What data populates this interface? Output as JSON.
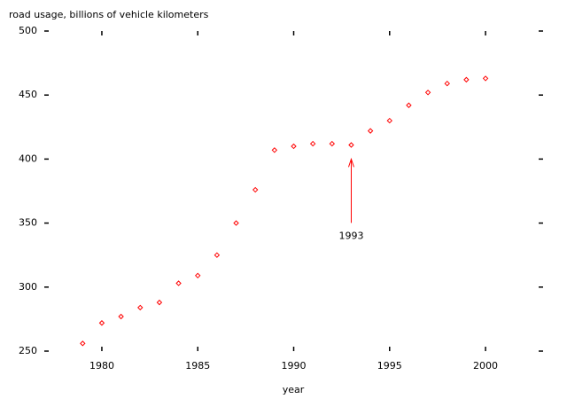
{
  "chart_data": {
    "type": "scatter",
    "title": "road usage, billions of vehicle kilometers",
    "x_label": "year",
    "x": [
      1979,
      1980,
      1981,
      1982,
      1983,
      1984,
      1985,
      1986,
      1987,
      1988,
      1989,
      1990,
      1991,
      1992,
      1993,
      1994,
      1995,
      1996,
      1997,
      1998,
      1999,
      2000
    ],
    "values": [
      256,
      272,
      277,
      284,
      288,
      303,
      309,
      325,
      350,
      376,
      407,
      410,
      412,
      412,
      411,
      422,
      430,
      442,
      452,
      459,
      462,
      463
    ],
    "color": "#ff0000",
    "xlim": [
      1977,
      2003
    ],
    "xticks": [
      1980,
      1985,
      1990,
      1995,
      2000
    ],
    "ylim": [
      250,
      500
    ],
    "yticks": [
      250,
      300,
      350,
      400,
      450,
      500
    ],
    "annotation": {
      "text": "1993",
      "x": 1993,
      "y": 400
    }
  }
}
